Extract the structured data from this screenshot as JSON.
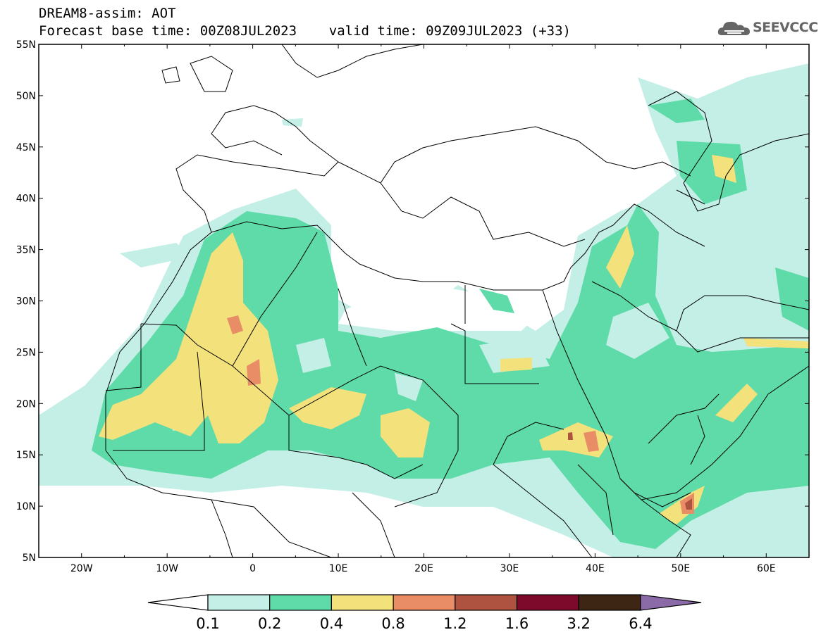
{
  "header": {
    "title": "DREAM8-assim: AOT",
    "forecast_line": "Forecast base time: 00Z08JUL2023    valid time: 09Z09JUL2023 (+33)"
  },
  "logo": {
    "text": "SEEVCCC",
    "icon": "cloud-icon"
  },
  "map": {
    "lon_range": [
      -25,
      65
    ],
    "lat_range": [
      5,
      55
    ],
    "lat_labels": [
      "55N",
      "50N",
      "45N",
      "40N",
      "35N",
      "30N",
      "25N",
      "20N",
      "15N",
      "10N",
      "5N"
    ],
    "lon_labels": [
      "20W",
      "10W",
      "0",
      "10E",
      "20E",
      "30E",
      "40E",
      "50E",
      "60E"
    ]
  },
  "colorbar": {
    "tick_labels": [
      "0.1",
      "0.2",
      "0.4",
      "0.8",
      "1.2",
      "1.6",
      "3.2",
      "6.4"
    ],
    "colors": [
      "#ffffff",
      "#c4efe6",
      "#5edba8",
      "#f3e27c",
      "#e98d67",
      "#ad5340",
      "#7d0a2b",
      "#3e2614",
      "#8a6aa7"
    ]
  }
}
